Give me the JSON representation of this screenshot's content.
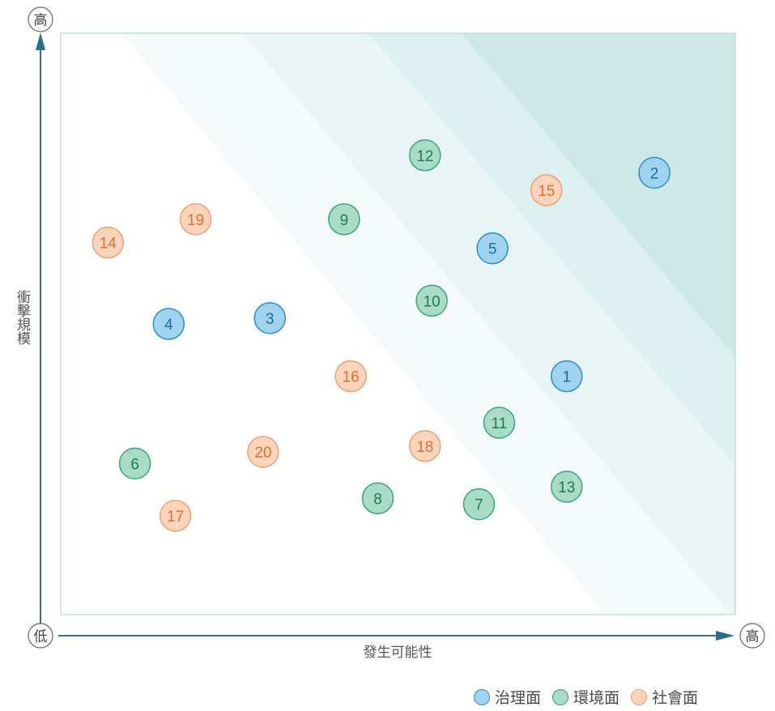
{
  "chart_data": {
    "type": "scatter",
    "title": "",
    "xlabel": "發生可能性",
    "ylabel": "衝擊規模",
    "x_low": "低",
    "x_high": "高",
    "y_high": "高",
    "series": [
      {
        "name": "治理面",
        "color_fill": "#9fd3ee",
        "color_stroke": "#2a8fcc",
        "text_color": "#1b6fa8",
        "points": [
          {
            "label": "1",
            "x": 0.75,
            "y": 0.41
          },
          {
            "label": "2",
            "x": 0.88,
            "y": 0.76
          },
          {
            "label": "3",
            "x": 0.31,
            "y": 0.51
          },
          {
            "label": "4",
            "x": 0.16,
            "y": 0.5
          },
          {
            "label": "5",
            "x": 0.64,
            "y": 0.63
          }
        ]
      },
      {
        "name": "環境面",
        "color_fill": "#a8dcc6",
        "color_stroke": "#3aa57f",
        "text_color": "#1f7a58",
        "points": [
          {
            "label": "6",
            "x": 0.11,
            "y": 0.26
          },
          {
            "label": "7",
            "x": 0.62,
            "y": 0.19
          },
          {
            "label": "8",
            "x": 0.47,
            "y": 0.2
          },
          {
            "label": "9",
            "x": 0.42,
            "y": 0.68
          },
          {
            "label": "10",
            "x": 0.55,
            "y": 0.54
          },
          {
            "label": "11",
            "x": 0.65,
            "y": 0.33
          },
          {
            "label": "12",
            "x": 0.54,
            "y": 0.79
          },
          {
            "label": "13",
            "x": 0.75,
            "y": 0.22
          }
        ]
      },
      {
        "name": "社會面",
        "color_fill": "#fbd4bc",
        "color_stroke": "#f0a070",
        "text_color": "#e0702a",
        "points": [
          {
            "label": "14",
            "x": 0.07,
            "y": 0.64
          },
          {
            "label": "15",
            "x": 0.72,
            "y": 0.73
          },
          {
            "label": "16",
            "x": 0.43,
            "y": 0.41
          },
          {
            "label": "17",
            "x": 0.17,
            "y": 0.17
          },
          {
            "label": "18",
            "x": 0.54,
            "y": 0.29
          },
          {
            "label": "19",
            "x": 0.2,
            "y": 0.68
          },
          {
            "label": "20",
            "x": 0.3,
            "y": 0.28
          }
        ]
      }
    ],
    "xlim": [
      0,
      1
    ],
    "ylim": [
      0,
      1
    ],
    "bands": [
      "#f3faf9",
      "#e8f5f4",
      "#dcf0ef",
      "#cde9e6"
    ]
  }
}
